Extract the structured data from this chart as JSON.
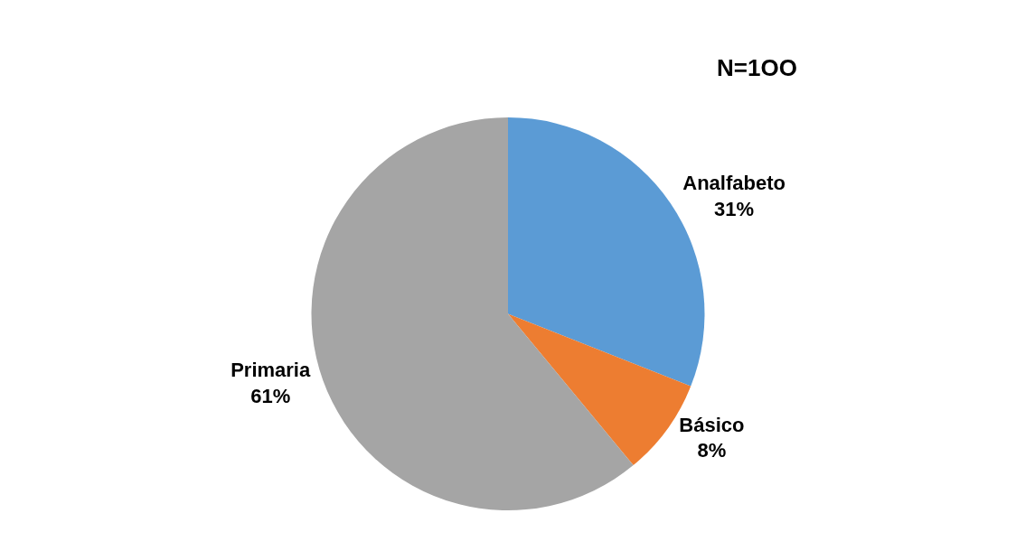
{
  "chart_data": {
    "type": "pie",
    "annotations": [
      "N=1OO"
    ],
    "categories": [
      "Analfabeto",
      "Básico",
      "Primaria"
    ],
    "values": [
      31,
      8,
      61
    ],
    "colors": [
      "#5b9bd5",
      "#ed7d31",
      "#a5a5a5"
    ],
    "value_labels": [
      "31%",
      "8%",
      "61%"
    ],
    "legend": false
  }
}
